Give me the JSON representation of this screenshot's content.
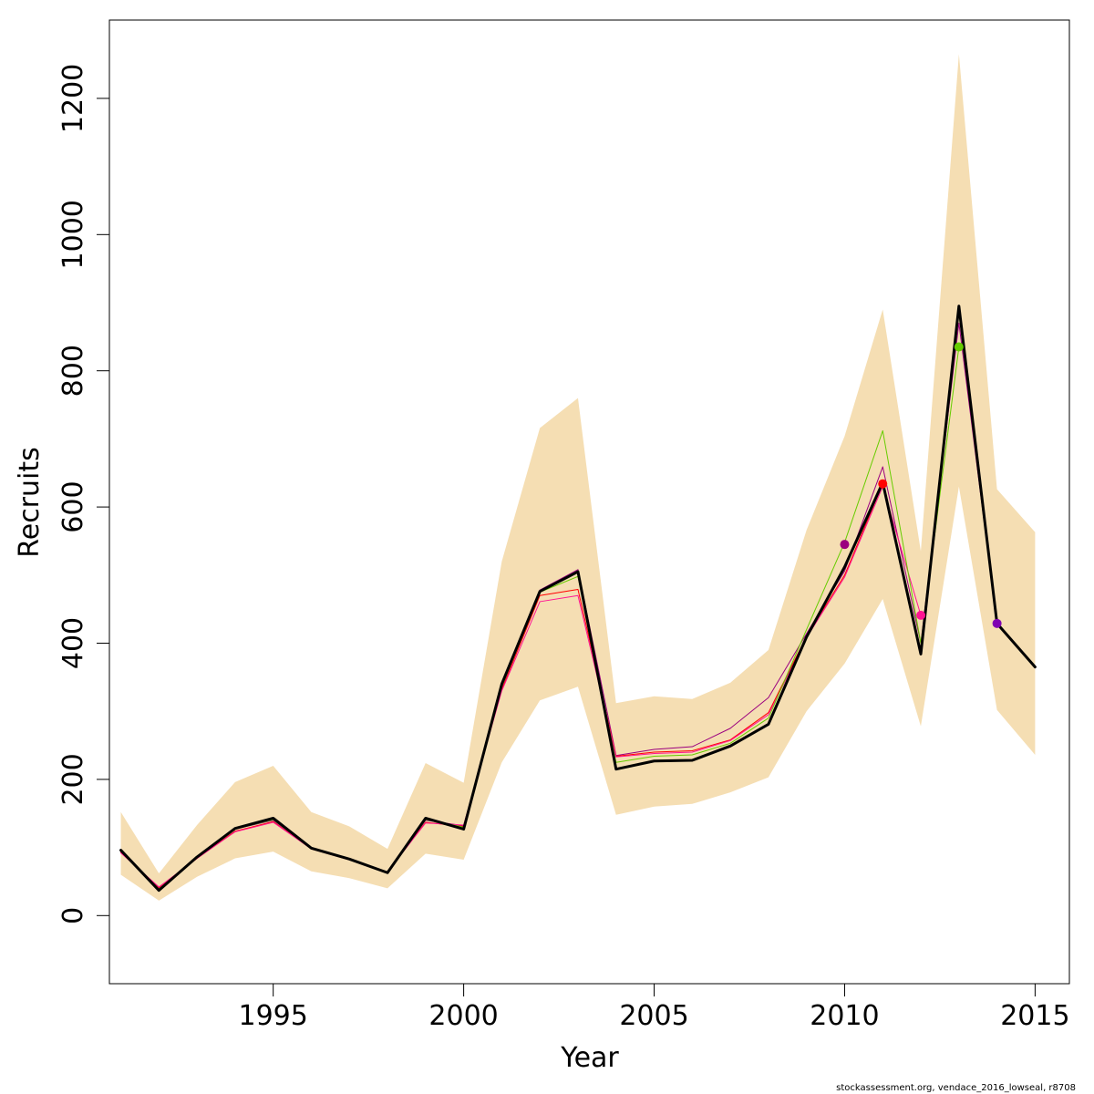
{
  "chart_data": {
    "type": "line",
    "xlabel": "Year",
    "ylabel": "Recruits",
    "xlim": [
      1990.7,
      2015.9
    ],
    "ylim": [
      -100,
      1315
    ],
    "x_ticks": [
      1995,
      2000,
      2005,
      2010,
      2015
    ],
    "y_ticks": [
      0,
      200,
      400,
      600,
      800,
      1000,
      1200
    ],
    "footnote": "stockassessment.org, vendace_2016_lowseal, r8708",
    "colors": {
      "band": "#F5DEB3",
      "main": "#000000",
      "peel_1": "#9B007F",
      "peel_2": "#FF0000",
      "peel_3": "#FF1493",
      "peel_4": "#66CC00",
      "peel_5": "#7F00B2"
    },
    "confidence_band": {
      "x": [
        1991,
        1992,
        1993,
        1994,
        1995,
        1996,
        1997,
        1998,
        1999,
        2000,
        2001,
        2002,
        2003,
        2004,
        2005,
        2006,
        2007,
        2008,
        2009,
        2010,
        2011,
        2012,
        2013,
        2014,
        2015
      ],
      "upper": [
        152,
        62,
        133,
        196,
        220,
        152,
        131,
        98,
        224,
        195,
        520,
        716,
        760,
        312,
        322,
        318,
        342,
        390,
        566,
        704,
        890,
        535,
        1265,
        626,
        563
      ],
      "lower": [
        60,
        22,
        57,
        84,
        94,
        65,
        55,
        40,
        91,
        82,
        225,
        316,
        336,
        148,
        160,
        164,
        181,
        203,
        300,
        370,
        465,
        278,
        630,
        302,
        236
      ]
    },
    "series": [
      {
        "color": "#000000",
        "width": 3,
        "x": [
          1991,
          1992,
          1993,
          1994,
          1995,
          1996,
          1997,
          1998,
          1999,
          2000,
          2001,
          2002,
          2003,
          2004,
          2005,
          2006,
          2007,
          2008,
          2009,
          2010,
          2011,
          2012,
          2013,
          2014,
          2015
        ],
        "values": [
          96,
          37,
          86,
          128,
          143,
          99,
          83,
          63,
          143,
          127,
          340,
          476,
          505,
          215,
          227,
          228,
          249,
          281,
          409,
          512,
          636,
          384,
          895,
          429,
          365
        ]
      },
      {
        "color": "#9B007F",
        "width": 1,
        "x": [
          1991,
          1992,
          1993,
          1994,
          1995,
          1996,
          1997,
          1998,
          1999,
          2000,
          2001,
          2002,
          2003,
          2004,
          2005,
          2006,
          2007,
          2008,
          2009,
          2010,
          2011,
          2012,
          2013,
          2014
        ],
        "values": [
          94,
          40,
          85,
          127,
          140,
          99,
          82,
          63,
          140,
          132,
          335,
          478,
          508,
          235,
          244,
          248,
          275,
          320,
          414,
          506,
          659,
          400,
          870,
          429
        ]
      },
      {
        "color": "#FF0000",
        "width": 1,
        "x": [
          1991,
          1992,
          1993,
          1994,
          1995,
          1996,
          1997,
          1998,
          1999,
          2000,
          2001,
          2002,
          2003,
          2004,
          2005,
          2006,
          2007,
          2008,
          2009,
          2010,
          2011
        ],
        "values": [
          93,
          41,
          84,
          124,
          138,
          98,
          82,
          64,
          137,
          131,
          332,
          470,
          479,
          234,
          240,
          242,
          258,
          298,
          410,
          500,
          634
        ]
      },
      {
        "color": "#FF1493",
        "width": 1,
        "x": [
          1991,
          1992,
          1993,
          1994,
          1995,
          1996,
          1997,
          1998,
          1999,
          2000,
          2001,
          2002,
          2003,
          2004,
          2005,
          2006,
          2007,
          2008,
          2009,
          2010,
          2011,
          2012
        ],
        "values": [
          92,
          42,
          84,
          123,
          137,
          98,
          82,
          64,
          136,
          133,
          330,
          461,
          470,
          233,
          238,
          240,
          257,
          295,
          408,
          497,
          630,
          441
        ]
      },
      {
        "color": "#66CC00",
        "width": 1,
        "x": [
          1991,
          1992,
          1993,
          1994,
          1995,
          1996,
          1997,
          1998,
          1999,
          2000,
          2001,
          2002,
          2003,
          2004,
          2005,
          2006,
          2007,
          2008,
          2009,
          2010,
          2011,
          2012,
          2013
        ],
        "values": [
          95,
          39,
          86,
          127,
          141,
          99,
          83,
          63,
          141,
          130,
          336,
          475,
          498,
          225,
          234,
          236,
          253,
          290,
          420,
          548,
          712,
          400,
          835
        ]
      }
    ],
    "points": [
      {
        "x": 2010,
        "y": 545,
        "color": "#9B007F"
      },
      {
        "x": 2011,
        "y": 634,
        "color": "#FF0000"
      },
      {
        "x": 2012,
        "y": 441,
        "color": "#FF1493"
      },
      {
        "x": 2013,
        "y": 835,
        "color": "#66CC00"
      },
      {
        "x": 2014,
        "y": 429,
        "color": "#7F00B2"
      }
    ]
  }
}
